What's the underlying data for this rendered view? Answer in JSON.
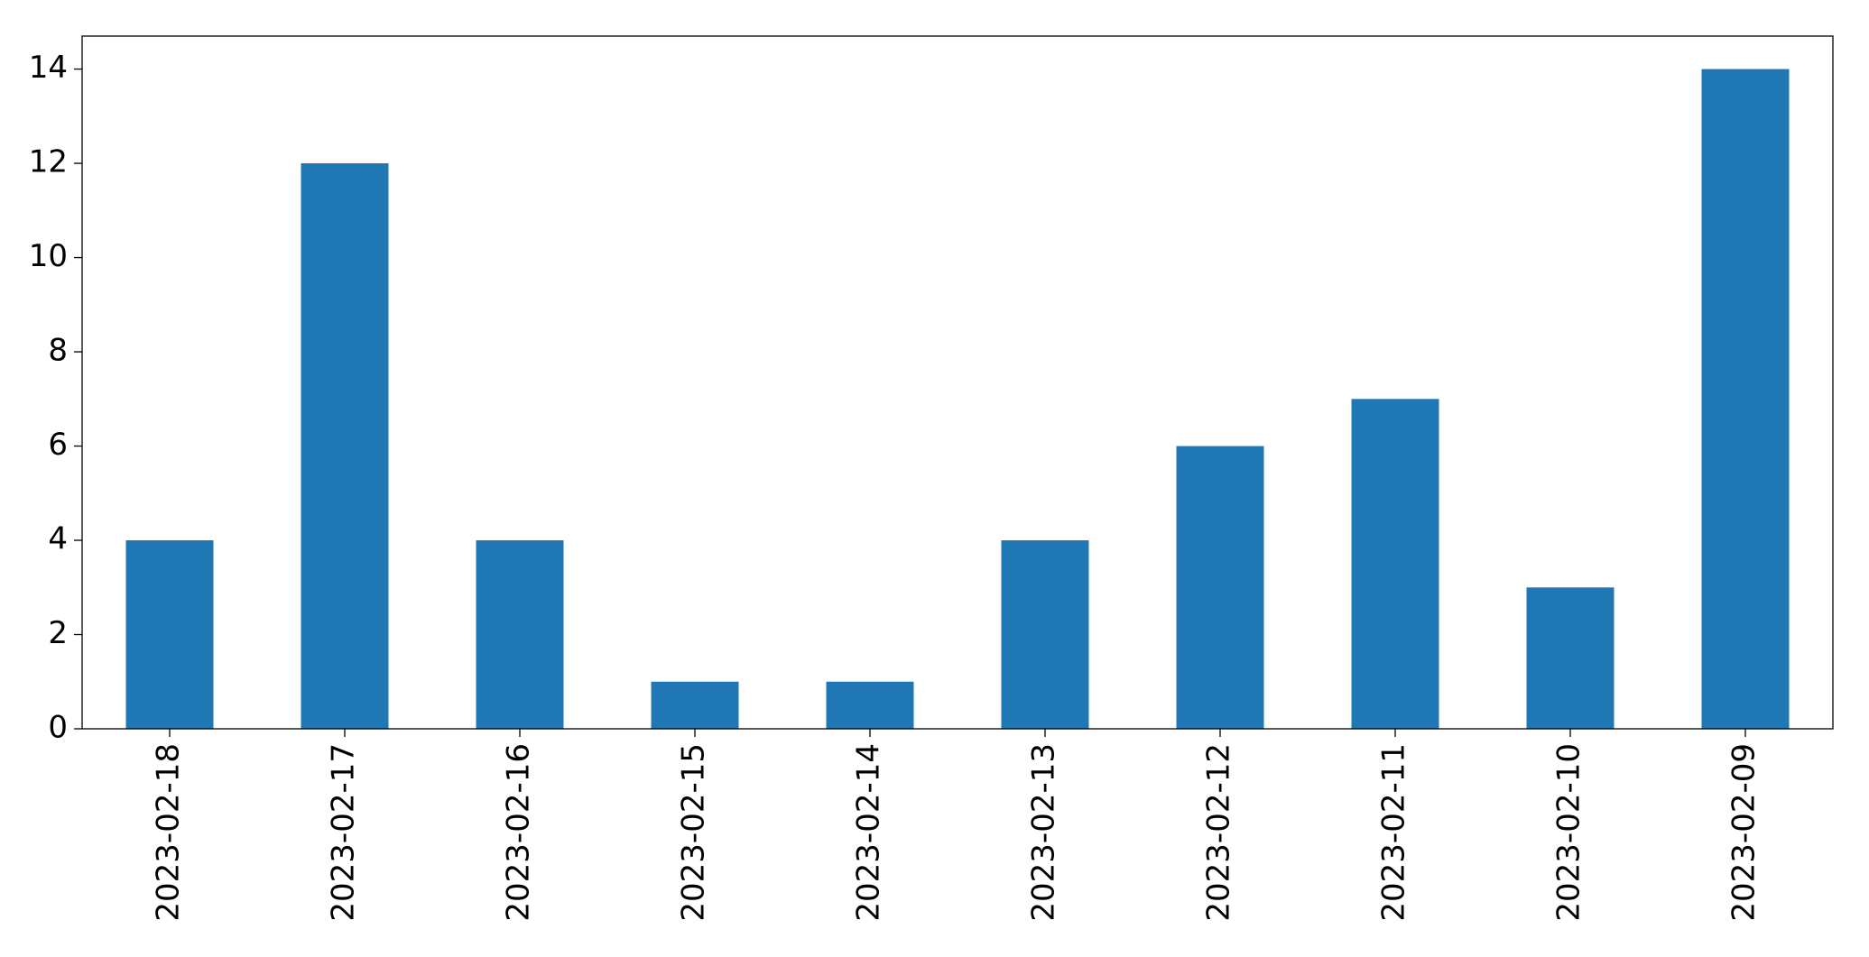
{
  "chart_data": {
    "type": "bar",
    "categories": [
      "2023-02-18",
      "2023-02-17",
      "2023-02-16",
      "2023-02-15",
      "2023-02-14",
      "2023-02-13",
      "2023-02-12",
      "2023-02-11",
      "2023-02-10",
      "2023-02-09"
    ],
    "values": [
      4,
      12,
      4,
      1,
      1,
      4,
      6,
      7,
      3,
      14
    ],
    "color": "#1f77b4",
    "ylim": [
      0,
      14.7
    ],
    "yticks": [
      0,
      2,
      4,
      6,
      8,
      10,
      12,
      14
    ],
    "grid": false
  }
}
